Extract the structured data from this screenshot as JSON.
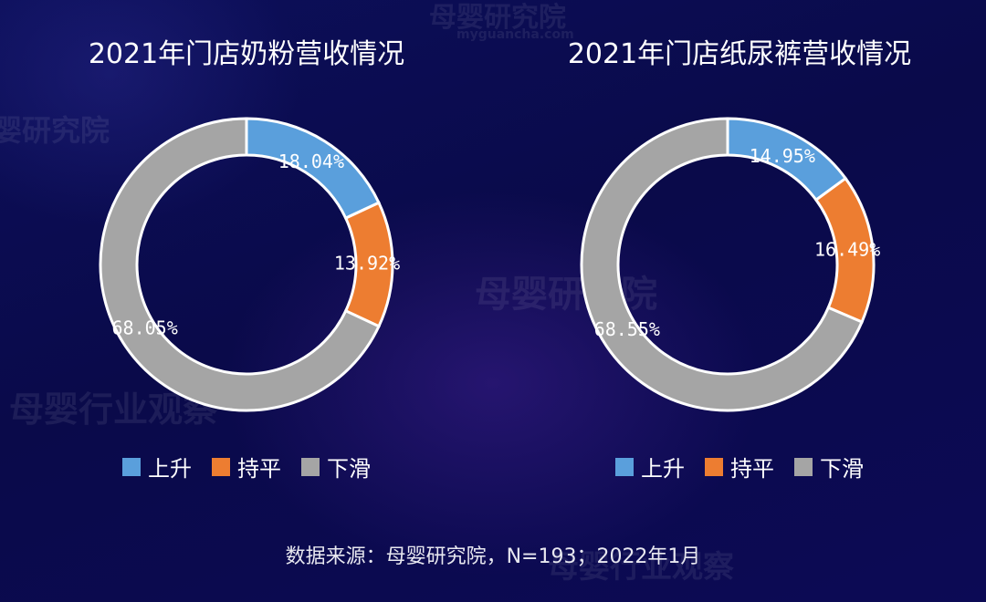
{
  "watermarks": {
    "brand_cn": "母婴研究院",
    "brand_en": "myguancha.com",
    "brand_obs": "母婴行业观察"
  },
  "colors": {
    "rise": "#5a9fdc",
    "flat": "#ed7d31",
    "fall": "#a5a5a5",
    "label": "#ffffff"
  },
  "chart_data": [
    {
      "type": "pie",
      "title": "2021年门店奶粉营收情况",
      "categories": [
        "上升",
        "持平",
        "下滑"
      ],
      "values": [
        18.04,
        13.92,
        68.05
      ],
      "labels": [
        "18.04%",
        "13.92%",
        "68.05%"
      ],
      "donut": true,
      "legend_position": "bottom"
    },
    {
      "type": "pie",
      "title": "2021年门店纸尿裤营收情况",
      "categories": [
        "上升",
        "持平",
        "下滑"
      ],
      "values": [
        14.95,
        16.49,
        68.55
      ],
      "labels": [
        "14.95%",
        "16.49%",
        "68.55%"
      ],
      "donut": true,
      "legend_position": "bottom"
    }
  ],
  "source": "数据来源：母婴研究院，N=193；2022年1月"
}
